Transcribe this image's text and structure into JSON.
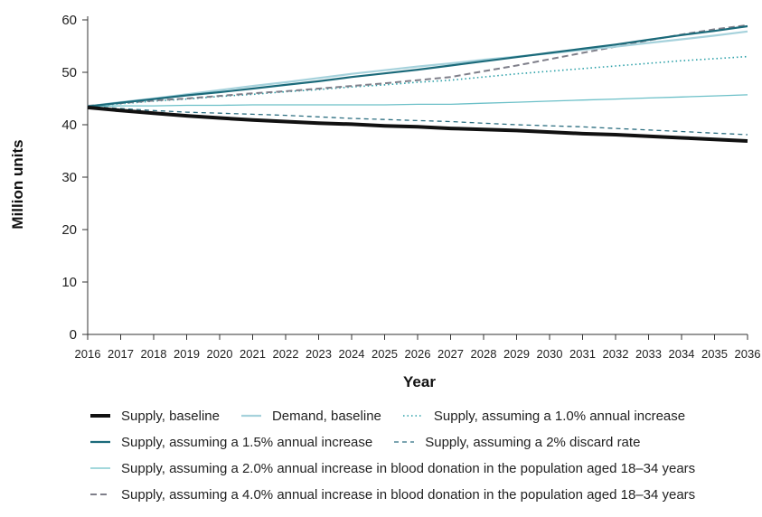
{
  "chart_data": {
    "type": "line",
    "xlabel": "Year",
    "ylabel": "Million units",
    "ylim": [
      0,
      60
    ],
    "yticks": [
      0,
      10,
      20,
      30,
      40,
      50,
      60
    ],
    "x": [
      2016,
      2017,
      2018,
      2019,
      2020,
      2021,
      2022,
      2023,
      2024,
      2025,
      2026,
      2027,
      2028,
      2029,
      2030,
      2031,
      2032,
      2033,
      2034,
      2035,
      2036
    ],
    "grid": false,
    "legend_position": "bottom",
    "series": [
      {
        "name": "Supply, baseline",
        "color": "#111111",
        "style": "solid-thick",
        "values": [
          43.3,
          42.7,
          42.2,
          41.7,
          41.3,
          40.9,
          40.6,
          40.3,
          40.1,
          39.8,
          39.6,
          39.3,
          39.1,
          38.9,
          38.6,
          38.3,
          38.1,
          37.8,
          37.5,
          37.2,
          36.9
        ]
      },
      {
        "name": "Demand, baseline",
        "color": "#a6d2dc",
        "style": "solid",
        "values": [
          43.5,
          44.3,
          45.0,
          45.8,
          46.6,
          47.4,
          48.1,
          48.9,
          49.7,
          50.4,
          51.1,
          51.7,
          52.4,
          53.0,
          53.6,
          54.3,
          54.9,
          55.6,
          56.3,
          57.0,
          57.8
        ]
      },
      {
        "name": "Supply, assuming a 1.0% annual increase",
        "color": "#2aa0a8",
        "style": "dotted",
        "values": [
          43.6,
          44.0,
          44.5,
          44.9,
          45.4,
          45.8,
          46.3,
          46.7,
          47.2,
          47.6,
          48.1,
          48.5,
          49.1,
          49.7,
          50.2,
          50.7,
          51.2,
          51.7,
          52.2,
          52.6,
          53.0
        ]
      },
      {
        "name": "Supply, assuming a 1.5% annual increase",
        "color": "#1b6a7a",
        "style": "solid",
        "values": [
          43.5,
          44.2,
          44.9,
          45.6,
          46.2,
          46.9,
          47.6,
          48.3,
          49.1,
          49.8,
          50.5,
          51.3,
          52.1,
          52.9,
          53.7,
          54.5,
          55.3,
          56.2,
          57.1,
          57.9,
          58.8
        ]
      },
      {
        "name": "Supply, assuming a 2% discard rate",
        "color": "#2c6e80",
        "style": "dashed",
        "values": [
          43.5,
          43.1,
          42.7,
          42.4,
          42.2,
          42.0,
          41.8,
          41.5,
          41.2,
          41.0,
          40.8,
          40.6,
          40.3,
          40.0,
          39.8,
          39.6,
          39.3,
          39.0,
          38.7,
          38.4,
          38.1
        ]
      },
      {
        "name": "Supply, assuming a 2.0% annual increase in blood donation in the population aged 18–34 years",
        "color": "#6cc0c8",
        "style": "solid-thin",
        "values": [
          43.5,
          43.6,
          43.6,
          43.7,
          43.7,
          43.8,
          43.8,
          43.8,
          43.8,
          43.8,
          43.9,
          43.9,
          44.1,
          44.3,
          44.5,
          44.7,
          44.9,
          45.1,
          45.3,
          45.5,
          45.7
        ]
      },
      {
        "name": "Supply, assuming a 4.0% annual increase in blood donation in the population aged 18–34 years",
        "color": "#7f7f8a",
        "style": "dashed-long",
        "values": [
          43.6,
          44.1,
          44.6,
          45.0,
          45.5,
          46.0,
          46.4,
          46.9,
          47.4,
          47.9,
          48.5,
          49.1,
          50.2,
          51.3,
          52.5,
          53.7,
          54.9,
          56.1,
          57.2,
          58.2,
          59.0
        ]
      }
    ],
    "legend_rows": [
      [
        0,
        1,
        2
      ],
      [
        3,
        4
      ],
      [
        5
      ],
      [
        6
      ]
    ]
  }
}
